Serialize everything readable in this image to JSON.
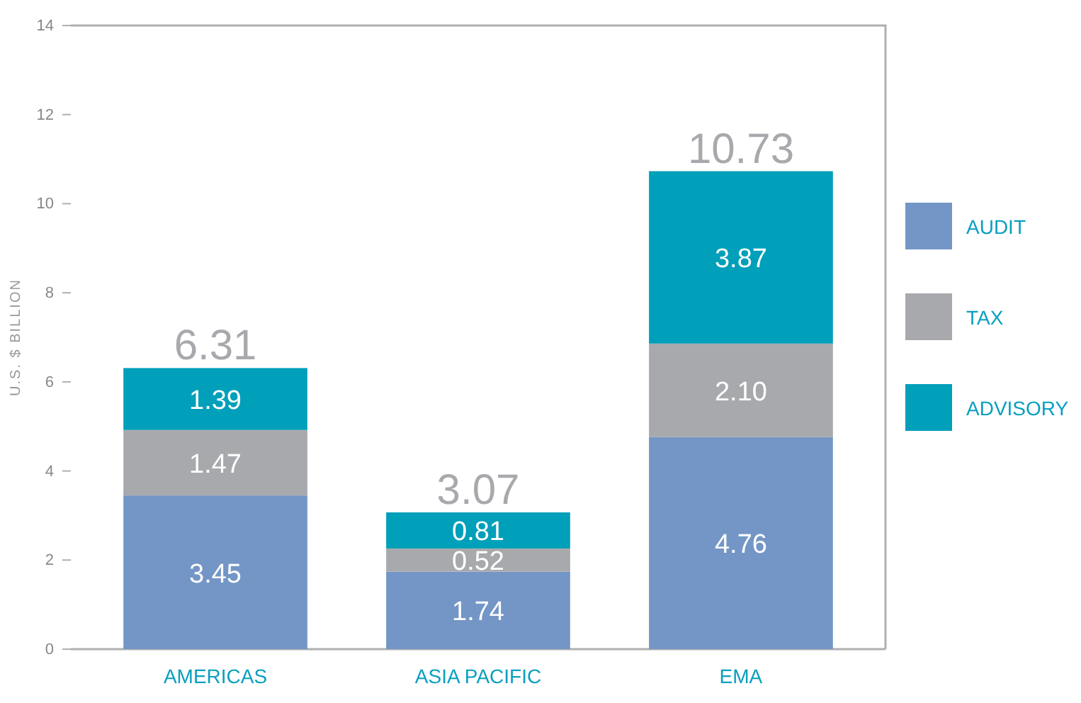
{
  "chart_data": {
    "type": "bar",
    "stacked": true,
    "ylabel": "U.S. $ BILLION",
    "categories": [
      "AMERICAS",
      "ASIA PACIFIC",
      "EMA"
    ],
    "series": [
      {
        "name": "AUDIT",
        "color": "#7396c6",
        "values": [
          3.45,
          1.74,
          4.76
        ]
      },
      {
        "name": "TAX",
        "color": "#a8a9ad",
        "values": [
          1.47,
          0.52,
          2.1
        ]
      },
      {
        "name": "ADVISORY",
        "color": "#009fba",
        "values": [
          1.39,
          0.81,
          3.87
        ]
      }
    ],
    "value_labels": [
      [
        "3.45",
        "1.74",
        "4.76"
      ],
      [
        "1.47",
        "0.52",
        "2.10"
      ],
      [
        "1.39",
        "0.81",
        "3.87"
      ]
    ],
    "totals": [
      "6.31",
      "3.07",
      "10.73"
    ],
    "ylim": [
      0,
      14
    ],
    "yticks": [
      0,
      2,
      4,
      6,
      8,
      10,
      12,
      14
    ],
    "grid": false,
    "legend": "right"
  }
}
